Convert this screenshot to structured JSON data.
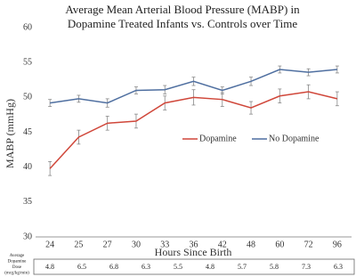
{
  "chart_data": {
    "type": "line",
    "title": [
      "Average Mean Arterial Blood Pressure (MABP) in",
      "Dopamine Treated Infants vs. Controls over Time"
    ],
    "y_label": "MABP (mmHg)",
    "x_label": "Hours Since Birth",
    "categories": [
      "24",
      "25",
      "27",
      "30",
      "33",
      "36",
      "42",
      "48",
      "60",
      "72",
      "96"
    ],
    "series": [
      {
        "name": "Dopamine",
        "color": "#d0473a",
        "values": [
          39.8,
          44.3,
          46.3,
          46.6,
          49.2,
          50.0,
          49.7,
          48.5,
          50.2,
          50.8,
          49.8
        ],
        "errors": [
          1.0,
          1.0,
          1.0,
          1.0,
          1.0,
          1.1,
          1.0,
          0.9,
          1.0,
          1.0,
          1.0
        ]
      },
      {
        "name": "No Dopamine",
        "color": "#4f6fa0",
        "values": [
          49.2,
          49.8,
          49.2,
          51.0,
          51.1,
          52.3,
          51.0,
          52.3,
          54.0,
          53.6,
          54.0
        ],
        "errors": [
          0.5,
          0.5,
          0.6,
          0.5,
          0.6,
          0.6,
          0.5,
          0.6,
          0.5,
          0.5,
          0.5
        ]
      }
    ],
    "ylim": [
      30,
      60
    ],
    "yticks": [
      30,
      35,
      40,
      45,
      50,
      55,
      60
    ],
    "dose_table": {
      "label": [
        "Average",
        "Dopamine",
        "Dose",
        "(mcg/kg/min)"
      ],
      "values": [
        "4.8",
        "6.5",
        "6.8",
        "6.3",
        "5.5",
        "4.8",
        "5.7",
        "5.8",
        "7.3",
        "6.3"
      ]
    }
  }
}
